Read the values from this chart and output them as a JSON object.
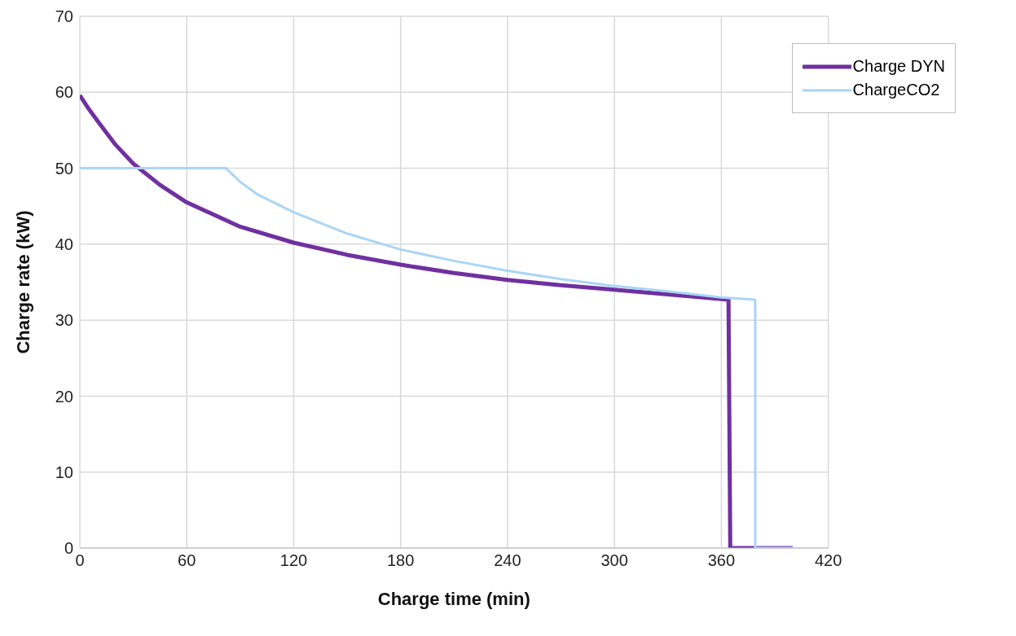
{
  "chart_data": {
    "type": "line",
    "xlabel": "Charge time (min)",
    "ylabel": "Charge rate (kW)",
    "xlim": [
      0,
      420
    ],
    "xticks": [
      0,
      60,
      120,
      180,
      240,
      300,
      360,
      420
    ],
    "ylim": [
      0,
      70
    ],
    "yticks": [
      0,
      10,
      20,
      30,
      40,
      50,
      60,
      70
    ],
    "grid": true,
    "legend": "top right",
    "marker": "none",
    "line_style": "solid",
    "series": [
      {
        "name": "Charge DYN",
        "color": "#7030a0",
        "x": [
          0,
          5,
          10,
          20,
          30,
          45,
          60,
          90,
          120,
          150,
          180,
          210,
          240,
          270,
          300,
          330,
          364,
          365,
          400
        ],
        "values": [
          59.6,
          57.8,
          56.2,
          53.1,
          50.6,
          47.8,
          45.5,
          42.3,
          40.2,
          38.6,
          37.3,
          36.2,
          35.3,
          34.6,
          34.0,
          33.4,
          32.7,
          0,
          0
        ]
      },
      {
        "name": "ChargeCO2",
        "color": "#a9d5f7",
        "x": [
          0,
          82,
          90,
          100,
          120,
          150,
          180,
          210,
          240,
          270,
          300,
          330,
          360,
          379,
          379,
          400
        ],
        "values": [
          50,
          50,
          48.2,
          46.5,
          44.2,
          41.4,
          39.3,
          37.8,
          36.5,
          35.4,
          34.5,
          33.8,
          33.0,
          32.7,
          0,
          0
        ]
      }
    ]
  }
}
